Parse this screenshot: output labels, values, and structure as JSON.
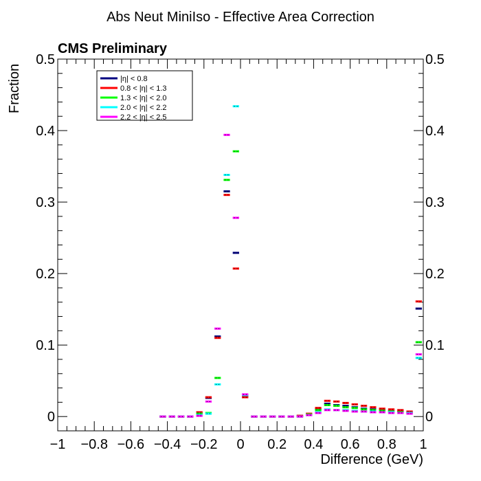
{
  "chart_data": {
    "type": "step",
    "title": "Abs Neut MiniIso - Effective Area Correction",
    "label": "CMS Preliminary",
    "xlabel": "Difference (GeV)",
    "ylabel": "Fraction",
    "xlim": [
      -1,
      1
    ],
    "ylim": [
      -0.02,
      0.5
    ],
    "x_ticks": [
      -1,
      -0.8,
      -0.6,
      -0.4,
      -0.2,
      0,
      0.2,
      0.4,
      0.6,
      0.8,
      1
    ],
    "x_tick_labels": [
      "−1",
      "−0.8",
      "−0.6",
      "−0.4",
      "−0.2",
      "0",
      "0.2",
      "0.4",
      "0.6",
      "0.8",
      "1"
    ],
    "y_ticks": [
      0,
      0.1,
      0.2,
      0.3,
      0.4,
      0.5
    ],
    "y_tick_labels": [
      "0",
      "0.1",
      "0.2",
      "0.3",
      "0.4",
      "0.5"
    ],
    "bin_width": 0.05,
    "x_bin_centers": [
      -0.425,
      -0.375,
      -0.325,
      -0.275,
      -0.225,
      -0.175,
      -0.125,
      -0.075,
      -0.025,
      0.025,
      0.075,
      0.125,
      0.175,
      0.225,
      0.275,
      0.325,
      0.375,
      0.425,
      0.475,
      0.525,
      0.575,
      0.625,
      0.675,
      0.725,
      0.775,
      0.825,
      0.875,
      0.925,
      0.975
    ],
    "legend_position": "top-left",
    "grid": false,
    "series": [
      {
        "name": "|η| < 0.8",
        "color": "#000080",
        "values": [
          0.0,
          0.0,
          0.0,
          0.0,
          0.005,
          0.026,
          0.112,
          0.315,
          0.229,
          0.028,
          0.0,
          0.0,
          0.0,
          0.0,
          0.0,
          0.001,
          0.003,
          0.01,
          0.018,
          0.016,
          0.015,
          0.013,
          0.011,
          0.01,
          0.009,
          0.008,
          0.007,
          0.006,
          0.151
        ]
      },
      {
        "name": "0.8 < |η| < 1.3",
        "color": "#ff0000",
        "values": [
          0.0,
          0.0,
          0.0,
          0.0,
          0.006,
          0.027,
          0.11,
          0.31,
          0.207,
          0.027,
          0.0,
          0.0,
          0.0,
          0.0,
          0.0,
          0.001,
          0.004,
          0.012,
          0.022,
          0.021,
          0.019,
          0.017,
          0.015,
          0.013,
          0.011,
          0.01,
          0.009,
          0.007,
          0.161
        ]
      },
      {
        "name": "1.3 < |η| < 2.0",
        "color": "#00ff00",
        "values": [
          0.0,
          0.0,
          0.0,
          0.0,
          0.004,
          0.005,
          0.054,
          0.331,
          0.371,
          0.03,
          0.0,
          0.0,
          0.0,
          0.0,
          0.0,
          0.0,
          0.003,
          0.009,
          0.016,
          0.015,
          0.013,
          0.012,
          0.01,
          0.009,
          0.008,
          0.007,
          0.006,
          0.005,
          0.104
        ]
      },
      {
        "name": "2.0 < |η| < 2.2",
        "color": "#00ffff",
        "values": [
          0.0,
          0.0,
          0.0,
          0.0,
          0.002,
          0.004,
          0.045,
          0.338,
          0.434,
          0.03,
          0.0,
          0.0,
          0.0,
          0.0,
          0.0,
          0.0,
          0.002,
          0.006,
          0.01,
          0.009,
          0.009,
          0.008,
          0.007,
          0.007,
          0.006,
          0.006,
          0.005,
          0.005,
          0.082
        ]
      },
      {
        "name": "2.2 < |η| < 2.5",
        "color": "#ff00ff",
        "values": [
          0.0,
          0.0,
          0.0,
          0.0,
          0.001,
          0.021,
          0.123,
          0.394,
          0.278,
          0.031,
          0.0,
          0.0,
          0.0,
          0.0,
          0.0,
          0.0,
          0.002,
          0.005,
          0.009,
          0.009,
          0.008,
          0.007,
          0.007,
          0.006,
          0.006,
          0.005,
          0.005,
          0.004,
          0.087
        ]
      }
    ]
  }
}
